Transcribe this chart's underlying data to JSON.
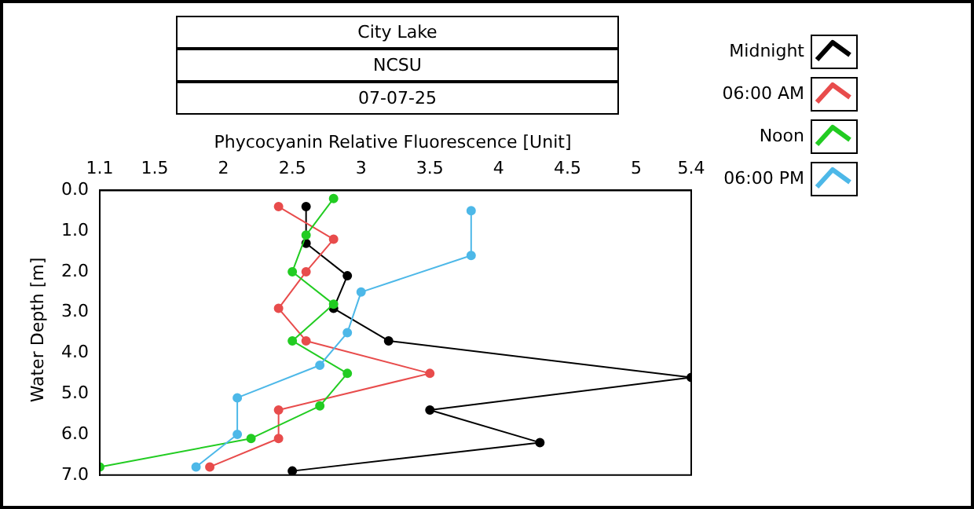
{
  "chart_data": {
    "type": "line",
    "title": "City Lake",
    "subtitle": "NCSU",
    "annotations": [
      "07-07-25"
    ],
    "xlabel": "Phycocyanin Relative Fluorescence [Unit]",
    "ylabel": "Water Depth [m]",
    "xlim": [
      1.1,
      5.4
    ],
    "xticks": [
      1.1,
      1.5,
      2,
      2.5,
      3,
      3.5,
      4,
      4.5,
      5,
      5.4
    ],
    "ylim": [
      7,
      0
    ],
    "yticks": [
      {
        "value": 0,
        "label": "0.0"
      },
      {
        "value": 1,
        "label": "1.0"
      },
      {
        "value": 2,
        "label": "2.0"
      },
      {
        "value": 3,
        "label": "3.0"
      },
      {
        "value": 4,
        "label": "4.0"
      },
      {
        "value": 5,
        "label": "5.0"
      },
      {
        "value": 6,
        "label": "6.0"
      },
      {
        "value": 7,
        "label": "7.0"
      }
    ],
    "grid": false,
    "legend": "top right",
    "marker": "circle",
    "line_style": "solid",
    "series": [
      {
        "name": "Midnight",
        "color": "#000000",
        "x": [
          2.6,
          2.6,
          2.9,
          2.8,
          3.2,
          5.4,
          3.5,
          4.3,
          2.5
        ],
        "values": [
          0.4,
          1.3,
          2.1,
          2.9,
          3.7,
          4.6,
          5.4,
          6.2,
          6.9
        ]
      },
      {
        "name": "06:00 AM",
        "color": "#e84c4c",
        "x": [
          2.4,
          2.8,
          2.6,
          2.4,
          2.6,
          3.5,
          2.4,
          2.4,
          1.9
        ],
        "values": [
          0.4,
          1.2,
          2.0,
          2.9,
          3.7,
          4.5,
          5.4,
          6.1,
          6.8
        ]
      },
      {
        "name": "Noon",
        "color": "#22cc22",
        "x": [
          2.8,
          2.6,
          2.5,
          2.8,
          2.5,
          2.9,
          2.7,
          2.2,
          1.1
        ],
        "values": [
          0.2,
          1.1,
          2.0,
          2.8,
          3.7,
          4.5,
          5.3,
          6.1,
          6.8
        ]
      },
      {
        "name": "06:00 PM",
        "color": "#4db8e8",
        "x": [
          3.8,
          3.8,
          3.0,
          2.9,
          2.7,
          2.1,
          2.1,
          1.8
        ],
        "values": [
          0.5,
          1.6,
          2.5,
          3.5,
          4.3,
          5.1,
          6.0,
          6.8
        ]
      }
    ]
  }
}
